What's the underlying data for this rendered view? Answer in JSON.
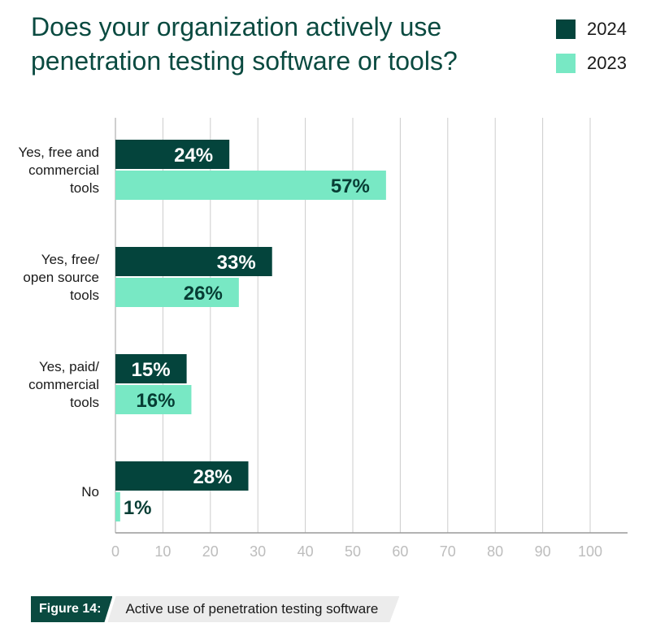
{
  "chart_data": {
    "type": "bar",
    "orientation": "horizontal",
    "title": "Does your organization actively use penetration testing software or tools?",
    "categories": [
      [
        "Yes, free and",
        "commercial",
        "tools"
      ],
      [
        "Yes, free/",
        "open source",
        "tools"
      ],
      [
        "Yes, paid/",
        "commercial",
        "tools"
      ],
      [
        "No"
      ]
    ],
    "series": [
      {
        "name": "2024",
        "color": "#04443c",
        "values": [
          24,
          33,
          15,
          28
        ],
        "labels": [
          "24%",
          "33%",
          "15%",
          "28%"
        ]
      },
      {
        "name": "2023",
        "color": "#78e8c4",
        "values": [
          57,
          26,
          16,
          1
        ],
        "labels": [
          "57%",
          "26%",
          "16%",
          "1%"
        ]
      }
    ],
    "xlim": [
      0,
      100
    ],
    "xticks": [
      "0",
      "10",
      "20",
      "30",
      "40",
      "50",
      "60",
      "70",
      "80",
      "90",
      "100"
    ],
    "grid": true,
    "legend_position": "top-right"
  },
  "caption": {
    "figure_label": "Figure 14:",
    "text": "Active use of penetration testing software"
  }
}
